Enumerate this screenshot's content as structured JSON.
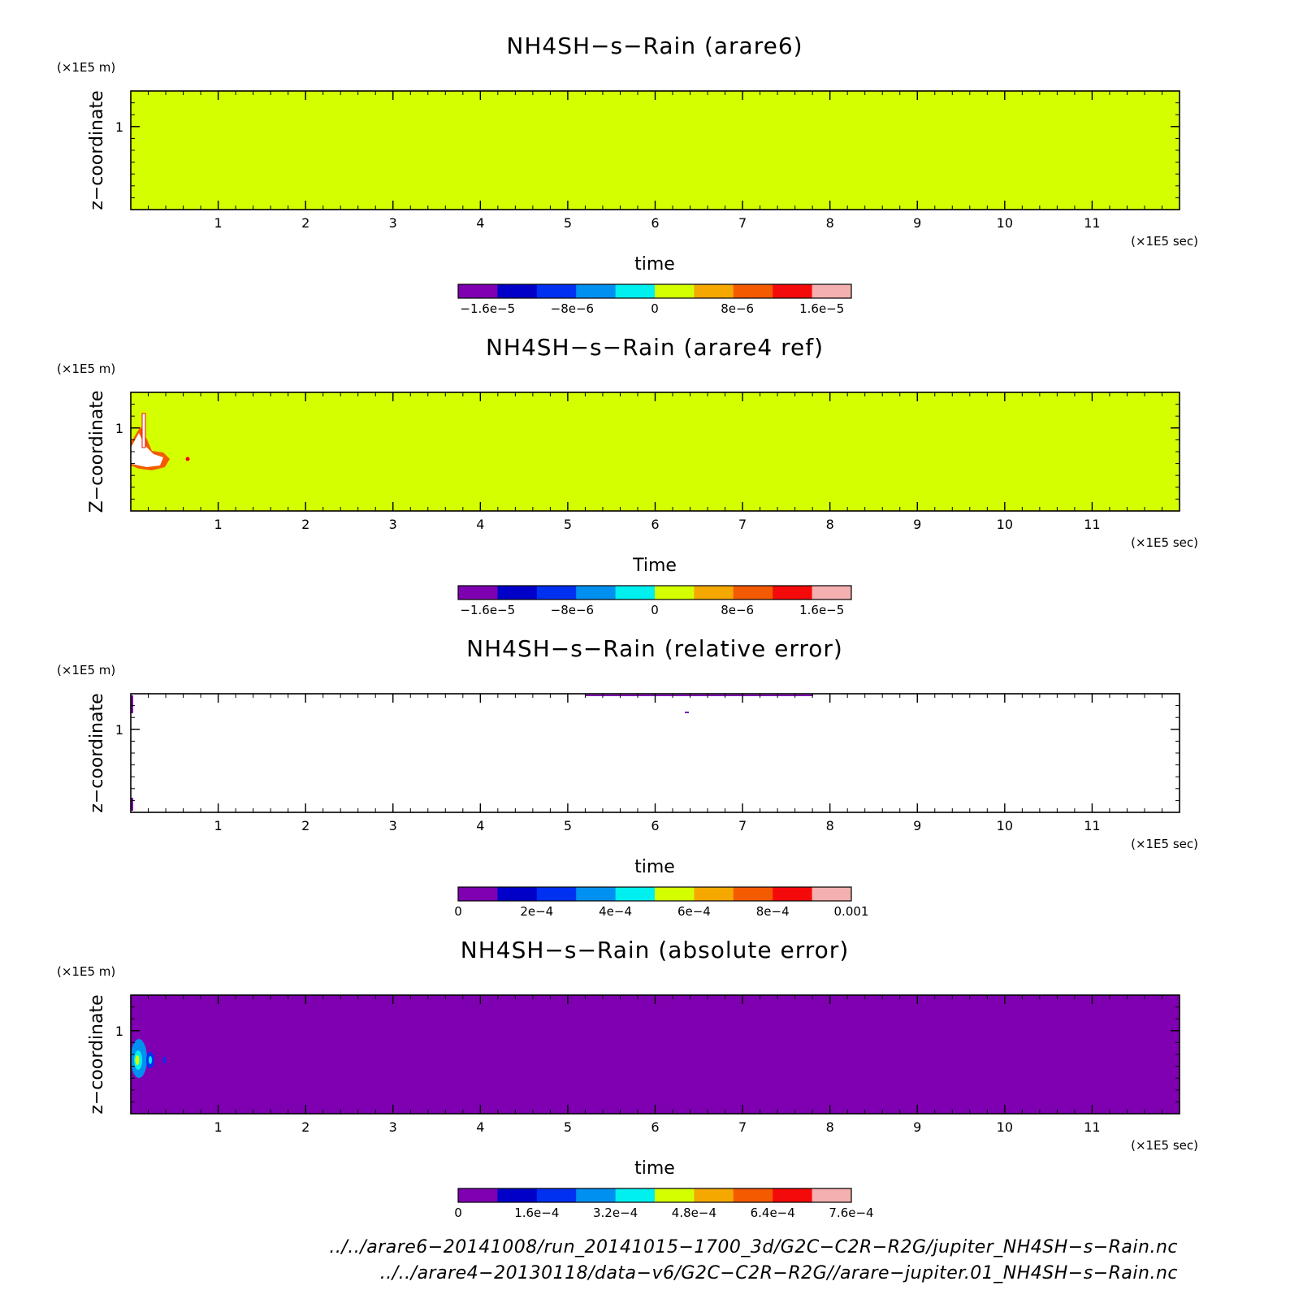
{
  "chart_data": [
    {
      "type": "heatmap",
      "title": "NH4SH−s−Rain (arare6)",
      "xlabel": "time",
      "ylabel": "z−coordinate",
      "x_unit": "(×1E5 sec)",
      "y_unit": "(×1E5 m)",
      "xlim": [
        0,
        12
      ],
      "ylim": [
        0.3,
        1.3
      ],
      "x_ticks": [
        "1",
        "2",
        "3",
        "4",
        "5",
        "6",
        "7",
        "8",
        "9",
        "10",
        "11"
      ],
      "y_ticks": [
        "1"
      ],
      "field": "uniform value 0 over entire domain",
      "colorbar": {
        "colors": [
          "#7f00b0",
          "#0000c8",
          "#0030f0",
          "#0090f0",
          "#00f0f0",
          "#d4ff00",
          "#f4a800",
          "#f45a00",
          "#f40a0a",
          "#f4b0b0"
        ],
        "labels": [
          "−1.6e−5",
          "−8e−6",
          "0",
          "8e−6",
          "1.6e−5"
        ]
      }
    },
    {
      "type": "heatmap",
      "title": "NH4SH−s−Rain (arare4 ref)",
      "xlabel": "Time",
      "ylabel": "Z−coordinate",
      "x_unit": "(×1E5 sec)",
      "y_unit": "(×1E5 m)",
      "xlim": [
        0,
        12
      ],
      "ylim": [
        0.3,
        1.3
      ],
      "x_ticks": [
        "1",
        "2",
        "3",
        "4",
        "5",
        "6",
        "7",
        "8",
        "9",
        "10",
        "11"
      ],
      "y_ticks": [
        "1"
      ],
      "field": "mostly 0; small region of large positive values near time 0–0.7, z 0.7–1.15",
      "colorbar": {
        "colors": [
          "#7f00b0",
          "#0000c8",
          "#0030f0",
          "#0090f0",
          "#00f0f0",
          "#d4ff00",
          "#f4a800",
          "#f45a00",
          "#f40a0a",
          "#f4b0b0"
        ],
        "labels": [
          "−1.6e−5",
          "−8e−6",
          "0",
          "8e−6",
          "1.6e−5"
        ]
      }
    },
    {
      "type": "heatmap",
      "title": "NH4SH−s−Rain (relative error)",
      "xlabel": "time",
      "ylabel": "z−coordinate",
      "x_unit": "(×1E5 sec)",
      "y_unit": "(×1E5 m)",
      "xlim": [
        0,
        12
      ],
      "ylim": [
        0.3,
        1.3
      ],
      "x_ticks": [
        "1",
        "2",
        "3",
        "4",
        "5",
        "6",
        "7",
        "8",
        "9",
        "10",
        "11"
      ],
      "y_ticks": [
        "1"
      ],
      "field": "undefined almost everywhere; tiny values near top edge and left edge",
      "colorbar": {
        "colors": [
          "#7f00b0",
          "#0000c8",
          "#0030f0",
          "#0090f0",
          "#00f0f0",
          "#d4ff00",
          "#f4a800",
          "#f45a00",
          "#f40a0a",
          "#f4b0b0"
        ],
        "labels": [
          "0",
          "2e−4",
          "4e−4",
          "6e−4",
          "8e−4",
          "0.001"
        ]
      }
    },
    {
      "type": "heatmap",
      "title": "NH4SH−s−Rain (absolute error)",
      "xlabel": "time",
      "ylabel": "z−coordinate",
      "x_unit": "(×1E5 sec)",
      "y_unit": "(×1E5 m)",
      "xlim": [
        0,
        12
      ],
      "ylim": [
        0.3,
        1.3
      ],
      "x_ticks": [
        "1",
        "2",
        "3",
        "4",
        "5",
        "6",
        "7",
        "8",
        "9",
        "10",
        "11"
      ],
      "y_ticks": [
        "1"
      ],
      "field": "0 almost everywhere; small nonzero patch near time 0–0.4, z 0.7–1.1",
      "colorbar": {
        "colors": [
          "#7f00b0",
          "#0000c8",
          "#0030f0",
          "#0090f0",
          "#00f0f0",
          "#d4ff00",
          "#f4a800",
          "#f45a00",
          "#f40a0a",
          "#f4b0b0"
        ],
        "labels": [
          "0",
          "1.6e−4",
          "3.2e−4",
          "4.8e−4",
          "6.4e−4",
          "7.6e−4"
        ]
      }
    }
  ],
  "footer": {
    "line1": "../../arare6−20141008/run_20141015−1700_3d/G2C−C2R−R2G/jupiter_NH4SH−s−Rain.nc",
    "line2": "../../arare4−20130118/data−v6/G2C−C2R−R2G//arare−jupiter.01_NH4SH−s−Rain.nc"
  }
}
